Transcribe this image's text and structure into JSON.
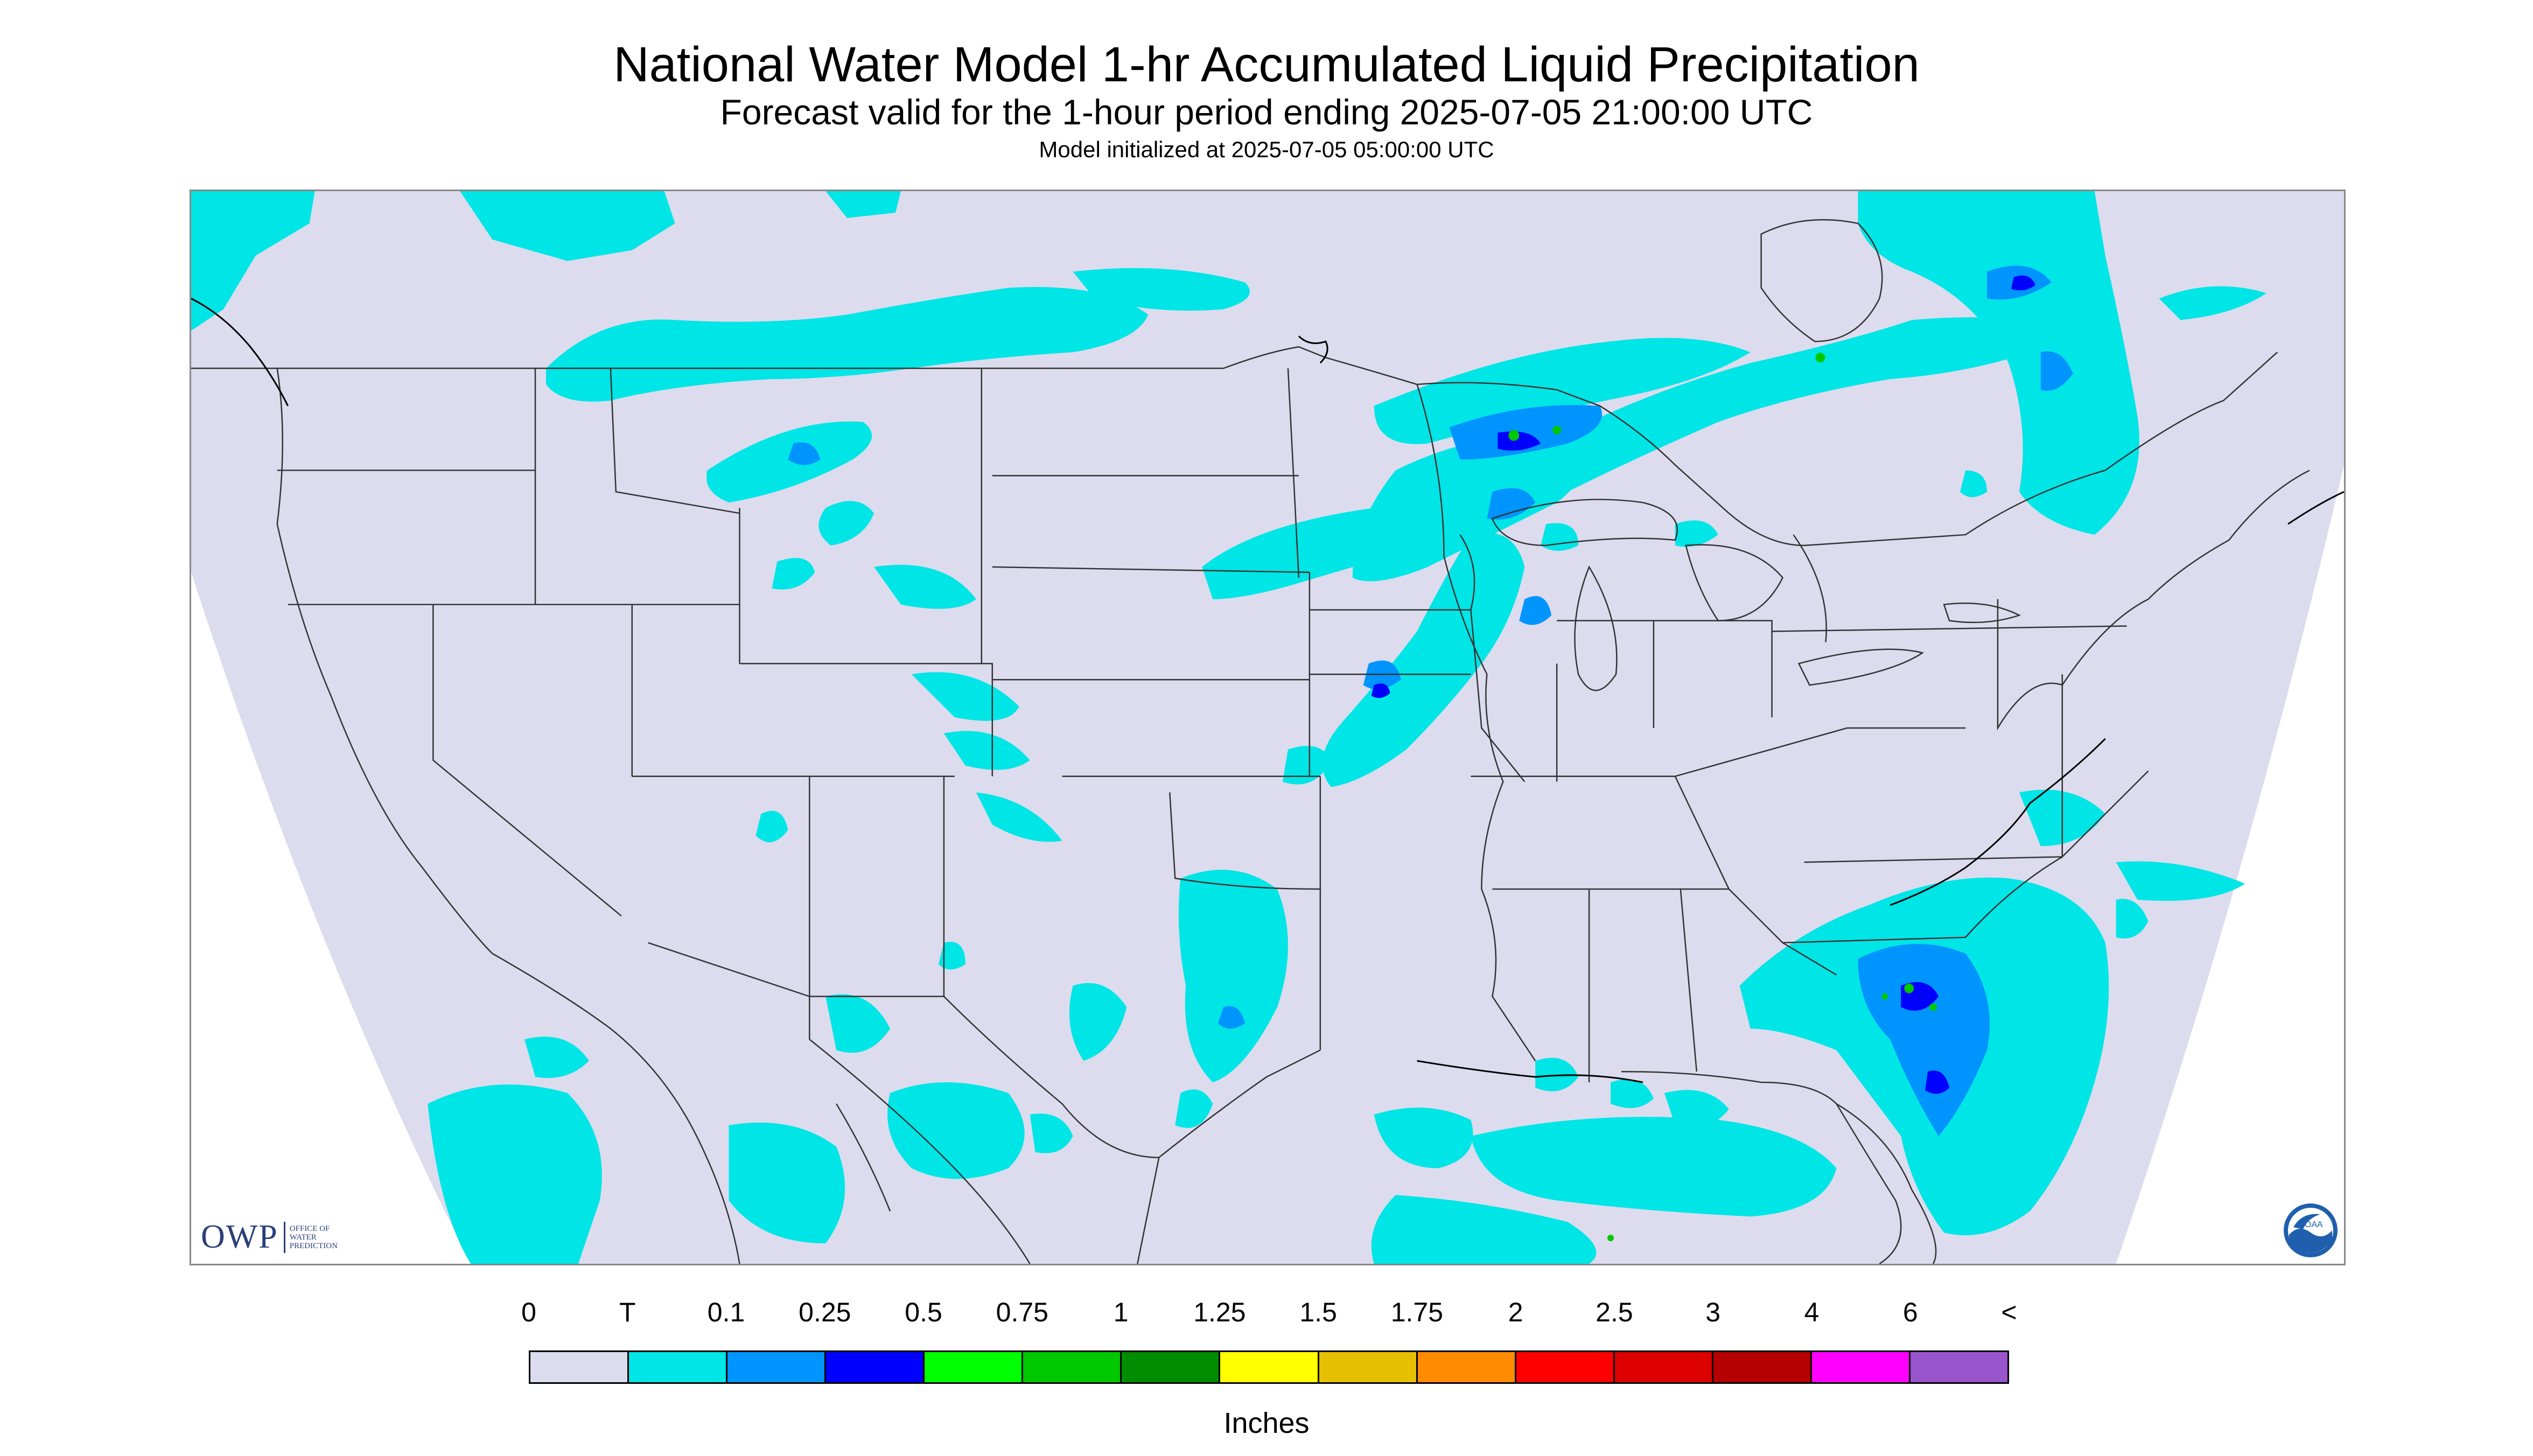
{
  "title": "National Water Model 1-hr Accumulated Liquid Precipitation",
  "subtitle": "Forecast valid for the 1-hour period ending 2025-07-05 21:00:00 UTC",
  "init_text": "Model initialized at 2025-07-05 05:00:00 UTC",
  "map": {
    "background_color": "#dcdcee",
    "outside_color": "#ffffff",
    "line_color": "#333333"
  },
  "owp_logo": {
    "text": "OWP",
    "sub_lines": [
      "OFFICE OF",
      "WATER",
      "PREDICTION"
    ]
  },
  "noaa_logo": {
    "text": "NOAA",
    "icon": "noaa-seal-icon"
  },
  "legend": {
    "labels": [
      "0",
      "T",
      "0.1",
      "0.25",
      "0.5",
      "0.75",
      "1",
      "1.25",
      "1.5",
      "1.75",
      "2",
      "2.5",
      "3",
      "4",
      "6",
      "<"
    ],
    "colors": [
      "#dcdcee",
      "#00e5e5",
      "#0094ff",
      "#0000ff",
      "#00ff00",
      "#00c800",
      "#008c00",
      "#ffff00",
      "#e5c000",
      "#ff8c00",
      "#ff0000",
      "#dc0000",
      "#b40000",
      "#ff00ff",
      "#9955cc"
    ],
    "units": "Inches"
  }
}
